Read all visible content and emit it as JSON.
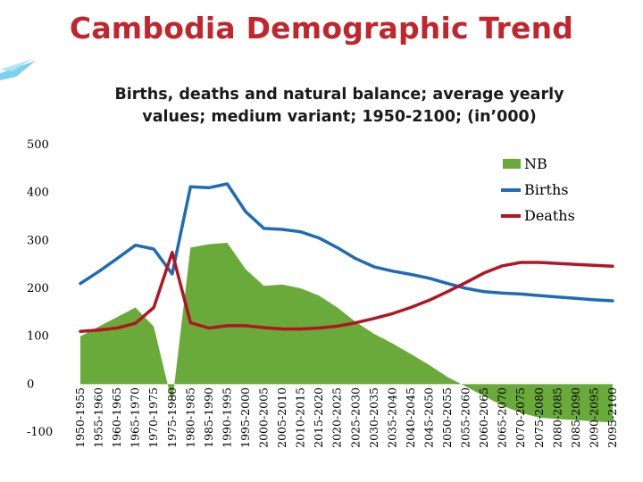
{
  "slide_title": "Cambodia Demographic Trend",
  "chart_data": {
    "type": "line",
    "title_line1": "Births, deaths and natural balance;  average yearly",
    "title_line2": "values; medium variant; 1950-2100; (in’000)",
    "ylim": [
      -100,
      500
    ],
    "yticks": [
      -100,
      0,
      100,
      200,
      300,
      400,
      500
    ],
    "categories": [
      "1950-1955",
      "1955-1960",
      "1960-1965",
      "1965-1970",
      "1970-1975",
      "1975-1980",
      "1980-1985",
      "1985-1990",
      "1990-1995",
      "1995-2000",
      "2000-2005",
      "2005-2010",
      "2010-2015",
      "2015-2020",
      "2020-2025",
      "2025-2030",
      "2030-2035",
      "2035-2040",
      "2040-2045",
      "2045-2050",
      "2050-2055",
      "2055-2060",
      "2060-2065",
      "2065-2070",
      "2070-2075",
      "2075-2080",
      "2080-2085",
      "2085-2090",
      "2090-2095",
      "2095-2100"
    ],
    "series": [
      {
        "name": "NB",
        "type": "area",
        "color": "#6aaa3a",
        "values": [
          100,
          120,
          140,
          160,
          120,
          -40,
          285,
          292,
          295,
          240,
          205,
          208,
          200,
          185,
          160,
          130,
          105,
          85,
          63,
          40,
          15,
          -5,
          -25,
          -45,
          -60,
          -70,
          -73,
          -75,
          -78,
          -80
        ]
      },
      {
        "name": "Births",
        "type": "line",
        "color": "#1f6bb5",
        "values": [
          210,
          235,
          262,
          290,
          282,
          230,
          412,
          410,
          418,
          360,
          325,
          323,
          318,
          305,
          285,
          262,
          245,
          236,
          229,
          221,
          210,
          200,
          193,
          190,
          188,
          185,
          182,
          179,
          176,
          174
        ]
      },
      {
        "name": "Deaths",
        "type": "line",
        "color": "#b01623",
        "values": [
          110,
          113,
          117,
          127,
          160,
          275,
          128,
          117,
          122,
          122,
          118,
          115,
          115,
          117,
          121,
          128,
          137,
          147,
          160,
          175,
          193,
          212,
          232,
          247,
          254,
          254,
          252,
          250,
          248,
          246
        ]
      }
    ]
  },
  "colors": {
    "title": "#c0262c"
  }
}
